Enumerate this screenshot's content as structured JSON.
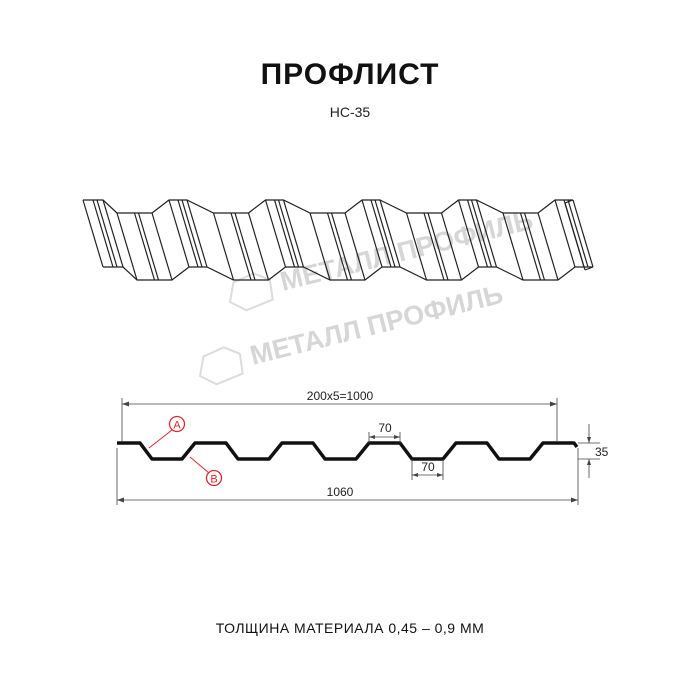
{
  "title": "ПРОФЛИСТ",
  "subtitle": "НС-35",
  "watermark": "МЕТАЛЛ ПРОФИЛЬ",
  "dimensions": {
    "pitch": "200x5=1000",
    "total_width": "1060",
    "top_width": "70",
    "bottom_width": "70",
    "height": "35"
  },
  "markers": {
    "a": "A",
    "b": "B"
  },
  "marker_color": "#e0282e",
  "footer": "ТОЛЩИНА МАТЕРИАЛА 0,45 – 0,9 ММ"
}
